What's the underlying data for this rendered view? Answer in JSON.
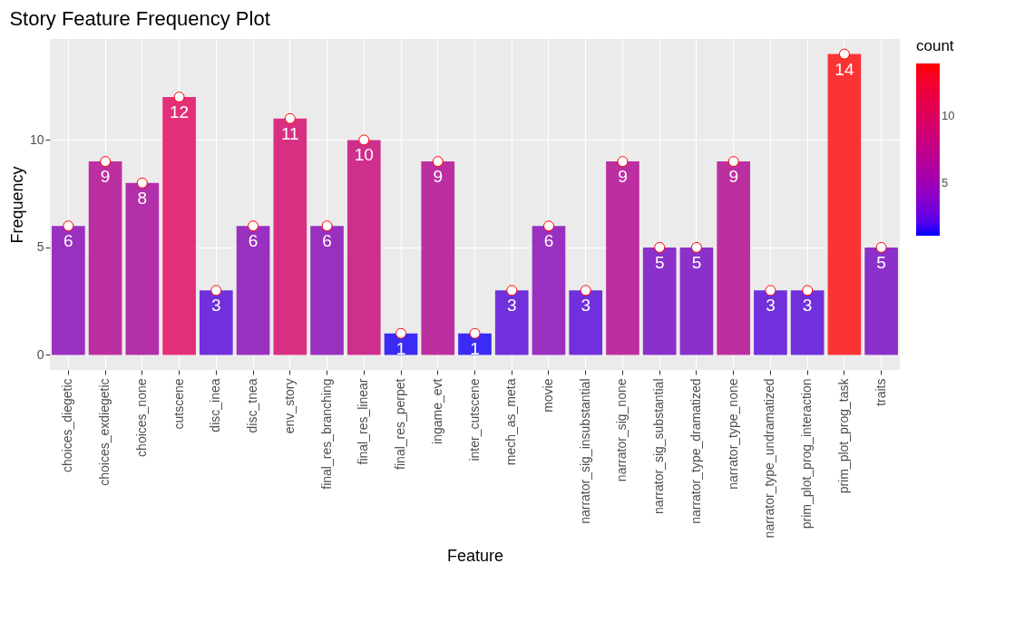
{
  "chart_data": {
    "type": "bar",
    "title": "Story Feature Frequency Plot",
    "xlabel": "Feature",
    "ylabel": "Frequency",
    "legend_title": "count",
    "categories": [
      "choices_diegetic",
      "choices_exdiegetic",
      "choices_none",
      "cutscene",
      "disc_inea",
      "disc_tnea",
      "env_story",
      "final_res_branching",
      "final_res_linear",
      "final_res_perpet",
      "ingame_evt",
      "inter_cutscene",
      "mech_as_meta",
      "movie",
      "narrator_sig_insubstantial",
      "narrator_sig_none",
      "narrator_sig_substantial",
      "narrator_type_dramatized",
      "narrator_type_none",
      "narrator_type_undramatized",
      "prim_plot_prog_interaction",
      "prim_plot_prog_task",
      "traits"
    ],
    "series": [
      {
        "values": [
          6,
          9,
          8,
          12,
          3,
          6,
          11,
          6,
          10,
          1,
          9,
          1,
          3,
          6,
          3,
          9,
          5,
          5,
          9,
          3,
          3,
          14,
          5
        ],
        "value_labels": [
          "6",
          "9",
          "8",
          "12",
          "3",
          "6",
          "11",
          "6",
          "10",
          "1",
          "9",
          "1",
          "3",
          "6",
          "3",
          "9",
          "5",
          "5",
          "9",
          "3",
          "3",
          "14",
          "5"
        ],
        "colors": [
          "#9a30c0",
          "#bc2fa0",
          "#b130aa",
          "#e22f78",
          "#7030dc",
          "#9a30c0",
          "#d92f82",
          "#9a30c0",
          "#ce2f8c",
          "#3a2cf5",
          "#bc2fa0",
          "#3a2cf5",
          "#7030dc",
          "#9a30c0",
          "#7030dc",
          "#bc2fa0",
          "#8b30cb",
          "#8b30cb",
          "#bc2fa0",
          "#7030dc",
          "#7030dc",
          "#fa3434",
          "#8b30cb"
        ]
      },
      {
        "type": "scatter",
        "color": "#ffffff",
        "x": [
          "choices_diegetic",
          "choices_exdiegetic",
          "choices_none",
          "cutscene",
          "disc_inea",
          "disc_tnea",
          "env_story",
          "final_res_branching",
          "final_res_linear",
          "final_res_perpet",
          "ingame_evt",
          "inter_cutscene",
          "mech_as_meta",
          "movie",
          "narrator_sig_insubstantial",
          "narrator_sig_none",
          "narrator_sig_substantial",
          "narrator_type_dramatized",
          "narrator_type_none",
          "narrator_type_undramatized",
          "prim_plot_prog_interaction",
          "prim_plot_prog_task",
          "traits"
        ],
        "values": [
          6,
          9,
          8,
          12,
          3,
          6,
          11,
          6,
          10,
          1,
          9,
          1,
          3,
          6,
          3,
          9,
          5,
          5,
          9,
          3,
          3,
          14,
          5
        ]
      }
    ],
    "ylim": [
      -0.7,
      14.7
    ],
    "yticks": [
      0,
      5,
      10
    ],
    "clim": [
      1,
      14
    ],
    "cticks": [
      5,
      10
    ],
    "grid": true,
    "marker": "circle"
  }
}
